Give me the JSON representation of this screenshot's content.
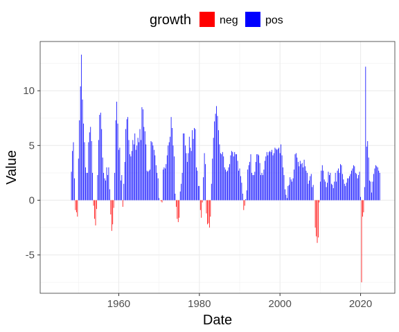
{
  "chart_data": {
    "type": "bar",
    "xlabel": "Date",
    "ylabel": "Value",
    "xlim": [
      1940.5,
      2028.5
    ],
    "ylim": [
      -8.5,
      14.5
    ],
    "x_ticks": [
      1960,
      1980,
      2000,
      2020
    ],
    "x_tick_labels": [
      "1960",
      "1980",
      "2000",
      "2020"
    ],
    "y_ticks": [
      -5,
      0,
      5,
      10
    ],
    "y_tick_labels": [
      "-5",
      "0",
      "5",
      "10"
    ],
    "grid": true,
    "legend": {
      "title": "growth",
      "placement": "top",
      "entries": [
        {
          "key": "neg",
          "label": "neg",
          "color": "#ff0000"
        },
        {
          "key": "pos",
          "label": "pos",
          "color": "#0000ff"
        }
      ]
    },
    "colors": {
      "neg": "#ff0000",
      "pos": "#0000ff"
    },
    "series_points": [
      [
        1948.25,
        2.6
      ],
      [
        1948.5,
        4.5
      ],
      [
        1948.75,
        5.3
      ],
      [
        1949.0,
        2.0
      ],
      [
        1949.25,
        -0.9
      ],
      [
        1949.5,
        -1.1
      ],
      [
        1949.75,
        -1.5
      ],
      [
        1950.0,
        3.8
      ],
      [
        1950.25,
        7.3
      ],
      [
        1950.5,
        10.4
      ],
      [
        1950.75,
        13.3
      ],
      [
        1951.0,
        9.2
      ],
      [
        1951.25,
        7.0
      ],
      [
        1951.5,
        5.3
      ],
      [
        1951.75,
        3.0
      ],
      [
        1952.0,
        2.5
      ],
      [
        1952.25,
        2.5
      ],
      [
        1952.5,
        5.3
      ],
      [
        1952.75,
        6.2
      ],
      [
        1953.0,
        6.7
      ],
      [
        1953.25,
        5.4
      ],
      [
        1953.5,
        2.5
      ],
      [
        1953.75,
        -0.5
      ],
      [
        1954.0,
        -1.7
      ],
      [
        1954.25,
        -2.3
      ],
      [
        1954.5,
        -0.8
      ],
      [
        1954.75,
        2.3
      ],
      [
        1955.0,
        5.5
      ],
      [
        1955.25,
        7.8
      ],
      [
        1955.5,
        8.0
      ],
      [
        1955.75,
        6.5
      ],
      [
        1956.0,
        3.9
      ],
      [
        1956.25,
        2.5
      ],
      [
        1956.5,
        2.0
      ],
      [
        1956.75,
        1.8
      ],
      [
        1957.0,
        3.0
      ],
      [
        1957.25,
        2.3
      ],
      [
        1957.5,
        3.0
      ],
      [
        1957.75,
        1.0
      ],
      [
        1958.0,
        -1.3
      ],
      [
        1958.25,
        -2.8
      ],
      [
        1958.5,
        -2.2
      ],
      [
        1958.75,
        -0.7
      ],
      [
        1959.0,
        2.5
      ],
      [
        1959.25,
        7.3
      ],
      [
        1959.5,
        9.0
      ],
      [
        1959.75,
        7.0
      ],
      [
        1960.0,
        4.6
      ],
      [
        1960.25,
        4.8
      ],
      [
        1960.5,
        1.8
      ],
      [
        1960.75,
        2.3
      ],
      [
        1961.0,
        -0.6
      ],
      [
        1961.25,
        1.5
      ],
      [
        1961.5,
        3.5
      ],
      [
        1961.75,
        6.5
      ],
      [
        1962.0,
        7.4
      ],
      [
        1962.25,
        7.6
      ],
      [
        1962.5,
        5.5
      ],
      [
        1962.75,
        4.2
      ],
      [
        1963.0,
        4.0
      ],
      [
        1963.25,
        4.5
      ],
      [
        1963.5,
        5.5
      ],
      [
        1963.75,
        5.1
      ],
      [
        1964.0,
        6.1
      ],
      [
        1964.25,
        4.6
      ],
      [
        1964.5,
        5.0
      ],
      [
        1964.75,
        5.7
      ],
      [
        1965.0,
        5.3
      ],
      [
        1965.25,
        6.5
      ],
      [
        1965.5,
        5.5
      ],
      [
        1965.75,
        8.5
      ],
      [
        1966.0,
        8.3
      ],
      [
        1966.25,
        6.7
      ],
      [
        1966.5,
        6.3
      ],
      [
        1966.75,
        5.1
      ],
      [
        1967.0,
        2.7
      ],
      [
        1967.25,
        2.6
      ],
      [
        1967.5,
        2.7
      ],
      [
        1967.75,
        2.8
      ],
      [
        1968.0,
        5.4
      ],
      [
        1968.25,
        5.3
      ],
      [
        1968.5,
        5.0
      ],
      [
        1968.75,
        4.6
      ],
      [
        1969.0,
        4.1
      ],
      [
        1969.25,
        3.2
      ],
      [
        1969.5,
        2.5
      ],
      [
        1969.75,
        2.0
      ],
      [
        1970.0,
        0.2
      ],
      [
        1970.25,
        0.0
      ],
      [
        1970.5,
        -0.1
      ],
      [
        1970.75,
        -0.2
      ],
      [
        1971.0,
        2.8
      ],
      [
        1971.25,
        3.0
      ],
      [
        1971.5,
        2.9
      ],
      [
        1971.75,
        3.3
      ],
      [
        1972.0,
        4.1
      ],
      [
        1972.25,
        5.0
      ],
      [
        1972.5,
        5.3
      ],
      [
        1972.75,
        5.8
      ],
      [
        1973.0,
        7.6
      ],
      [
        1973.25,
        6.6
      ],
      [
        1973.5,
        5.0
      ],
      [
        1973.75,
        4.0
      ],
      [
        1974.0,
        0.6
      ],
      [
        1974.25,
        -0.6
      ],
      [
        1974.5,
        -1.7
      ],
      [
        1974.75,
        -2.0
      ],
      [
        1975.0,
        -1.6
      ],
      [
        1975.25,
        0.8
      ],
      [
        1975.5,
        1.5
      ],
      [
        1975.75,
        2.5
      ],
      [
        1976.0,
        6.1
      ],
      [
        1976.25,
        6.1
      ],
      [
        1976.5,
        5.0
      ],
      [
        1976.75,
        4.3
      ],
      [
        1977.0,
        3.5
      ],
      [
        1977.25,
        4.3
      ],
      [
        1977.5,
        5.8
      ],
      [
        1977.75,
        4.8
      ],
      [
        1978.0,
        4.5
      ],
      [
        1978.25,
        6.4
      ],
      [
        1978.5,
        5.6
      ],
      [
        1978.75,
        6.6
      ],
      [
        1979.0,
        6.5
      ],
      [
        1979.25,
        3.0
      ],
      [
        1979.5,
        2.7
      ],
      [
        1979.75,
        1.3
      ],
      [
        1980.0,
        1.3
      ],
      [
        1980.25,
        -0.9
      ],
      [
        1980.5,
        -1.6
      ],
      [
        1980.75,
        -0.2
      ],
      [
        1981.0,
        2.1
      ],
      [
        1981.25,
        4.3
      ],
      [
        1981.5,
        3.3
      ],
      [
        1981.75,
        -1.2
      ],
      [
        1982.0,
        -2.2
      ],
      [
        1982.25,
        -2.1
      ],
      [
        1982.5,
        -2.5
      ],
      [
        1982.75,
        -1.5
      ],
      [
        1983.0,
        1.5
      ],
      [
        1983.25,
        3.8
      ],
      [
        1983.5,
        5.7
      ],
      [
        1983.75,
        7.2
      ],
      [
        1984.0,
        7.9
      ],
      [
        1984.25,
        8.6
      ],
      [
        1984.5,
        7.7
      ],
      [
        1984.75,
        6.4
      ],
      [
        1985.0,
        5.1
      ],
      [
        1985.25,
        4.3
      ],
      [
        1985.5,
        4.2
      ],
      [
        1985.75,
        4.4
      ],
      [
        1986.0,
        4.0
      ],
      [
        1986.25,
        3.0
      ],
      [
        1986.5,
        2.8
      ],
      [
        1986.75,
        2.6
      ],
      [
        1987.0,
        2.7
      ],
      [
        1987.25,
        3.0
      ],
      [
        1987.5,
        3.3
      ],
      [
        1987.75,
        4.1
      ],
      [
        1988.0,
        4.5
      ],
      [
        1988.25,
        4.4
      ],
      [
        1988.5,
        4.0
      ],
      [
        1988.75,
        4.4
      ],
      [
        1989.0,
        4.2
      ],
      [
        1989.25,
        4.2
      ],
      [
        1989.5,
        3.6
      ],
      [
        1989.75,
        2.7
      ],
      [
        1990.0,
        2.9
      ],
      [
        1990.25,
        2.2
      ],
      [
        1990.5,
        1.6
      ],
      [
        1990.75,
        0.6
      ],
      [
        1991.0,
        -0.9
      ],
      [
        1991.25,
        -0.5
      ],
      [
        1991.5,
        0.1
      ],
      [
        1991.75,
        0.9
      ],
      [
        1992.0,
        2.8
      ],
      [
        1992.25,
        3.2
      ],
      [
        1992.5,
        3.5
      ],
      [
        1992.75,
        4.2
      ],
      [
        1993.0,
        2.5
      ],
      [
        1993.25,
        2.3
      ],
      [
        1993.5,
        2.3
      ],
      [
        1993.75,
        2.6
      ],
      [
        1994.0,
        3.5
      ],
      [
        1994.25,
        4.2
      ],
      [
        1994.5,
        4.2
      ],
      [
        1994.75,
        4.1
      ],
      [
        1995.0,
        3.4
      ],
      [
        1995.25,
        2.3
      ],
      [
        1995.5,
        2.5
      ],
      [
        1995.75,
        2.3
      ],
      [
        1996.0,
        2.8
      ],
      [
        1996.25,
        3.6
      ],
      [
        1996.5,
        4.0
      ],
      [
        1996.75,
        4.4
      ],
      [
        1997.0,
        4.1
      ],
      [
        1997.25,
        4.4
      ],
      [
        1997.5,
        4.5
      ],
      [
        1997.75,
        4.4
      ],
      [
        1998.0,
        4.6
      ],
      [
        1998.25,
        4.1
      ],
      [
        1998.5,
        4.3
      ],
      [
        1998.75,
        4.8
      ],
      [
        1999.0,
        4.7
      ],
      [
        1999.25,
        4.6
      ],
      [
        1999.5,
        4.7
      ],
      [
        1999.75,
        4.8
      ],
      [
        2000.0,
        4.3
      ],
      [
        2000.25,
        5.1
      ],
      [
        2000.5,
        4.1
      ],
      [
        2000.75,
        3.0
      ],
      [
        2001.0,
        2.3
      ],
      [
        2001.25,
        1.0
      ],
      [
        2001.5,
        0.5
      ],
      [
        2001.75,
        0.2
      ],
      [
        2002.0,
        1.3
      ],
      [
        2002.25,
        1.4
      ],
      [
        2002.5,
        2.1
      ],
      [
        2002.75,
        1.9
      ],
      [
        2003.0,
        1.7
      ],
      [
        2003.25,
        2.0
      ],
      [
        2003.5,
        2.8
      ],
      [
        2003.75,
        4.2
      ],
      [
        2004.0,
        4.3
      ],
      [
        2004.25,
        3.9
      ],
      [
        2004.5,
        3.5
      ],
      [
        2004.75,
        3.1
      ],
      [
        2005.0,
        3.6
      ],
      [
        2005.25,
        3.3
      ],
      [
        2005.5,
        3.4
      ],
      [
        2005.75,
        3.0
      ],
      [
        2006.0,
        3.7
      ],
      [
        2006.25,
        3.1
      ],
      [
        2006.5,
        2.7
      ],
      [
        2006.75,
        2.5
      ],
      [
        2007.0,
        1.5
      ],
      [
        2007.25,
        1.8
      ],
      [
        2007.5,
        2.2
      ],
      [
        2007.75,
        2.4
      ],
      [
        2008.0,
        1.2
      ],
      [
        2008.25,
        1.4
      ],
      [
        2008.5,
        0.0
      ],
      [
        2008.75,
        -2.5
      ],
      [
        2009.0,
        -3.3
      ],
      [
        2009.25,
        -3.9
      ],
      [
        2009.5,
        -3.4
      ],
      [
        2009.75,
        -0.2
      ],
      [
        2010.0,
        1.7
      ],
      [
        2010.25,
        2.7
      ],
      [
        2010.5,
        3.2
      ],
      [
        2010.75,
        2.7
      ],
      [
        2011.0,
        1.9
      ],
      [
        2011.25,
        1.7
      ],
      [
        2011.5,
        1.2
      ],
      [
        2011.75,
        1.6
      ],
      [
        2012.0,
        2.6
      ],
      [
        2012.25,
        2.3
      ],
      [
        2012.5,
        2.5
      ],
      [
        2012.75,
        1.5
      ],
      [
        2013.0,
        1.4
      ],
      [
        2013.25,
        1.1
      ],
      [
        2013.5,
        1.7
      ],
      [
        2013.75,
        2.5
      ],
      [
        2014.0,
        1.7
      ],
      [
        2014.25,
        2.7
      ],
      [
        2014.5,
        2.9
      ],
      [
        2014.75,
        2.5
      ],
      [
        2015.0,
        3.3
      ],
      [
        2015.25,
        3.2
      ],
      [
        2015.5,
        2.4
      ],
      [
        2015.75,
        1.9
      ],
      [
        2016.0,
        1.5
      ],
      [
        2016.25,
        1.3
      ],
      [
        2016.5,
        1.6
      ],
      [
        2016.75,
        2.0
      ],
      [
        2017.0,
        2.0
      ],
      [
        2017.25,
        2.2
      ],
      [
        2017.5,
        2.4
      ],
      [
        2017.75,
        2.7
      ],
      [
        2018.0,
        2.9
      ],
      [
        2018.25,
        3.2
      ],
      [
        2018.5,
        3.1
      ],
      [
        2018.75,
        2.5
      ],
      [
        2019.0,
        2.4
      ],
      [
        2019.25,
        2.0
      ],
      [
        2019.5,
        2.3
      ],
      [
        2019.75,
        2.6
      ],
      [
        2020.0,
        0.3
      ],
      [
        2020.25,
        -7.5
      ],
      [
        2020.5,
        -1.5
      ],
      [
        2020.75,
        -1.1
      ],
      [
        2021.0,
        1.2
      ],
      [
        2021.25,
        12.2
      ],
      [
        2021.5,
        4.9
      ],
      [
        2021.75,
        5.4
      ],
      [
        2022.0,
        3.9
      ],
      [
        2022.25,
        1.8
      ],
      [
        2022.5,
        1.7
      ],
      [
        2022.75,
        0.7
      ],
      [
        2023.0,
        1.7
      ],
      [
        2023.25,
        2.4
      ],
      [
        2023.5,
        2.9
      ],
      [
        2023.75,
        3.2
      ],
      [
        2024.0,
        3.1
      ],
      [
        2024.25,
        3.0
      ],
      [
        2024.5,
        2.7
      ],
      [
        2024.75,
        2.5
      ]
    ]
  }
}
